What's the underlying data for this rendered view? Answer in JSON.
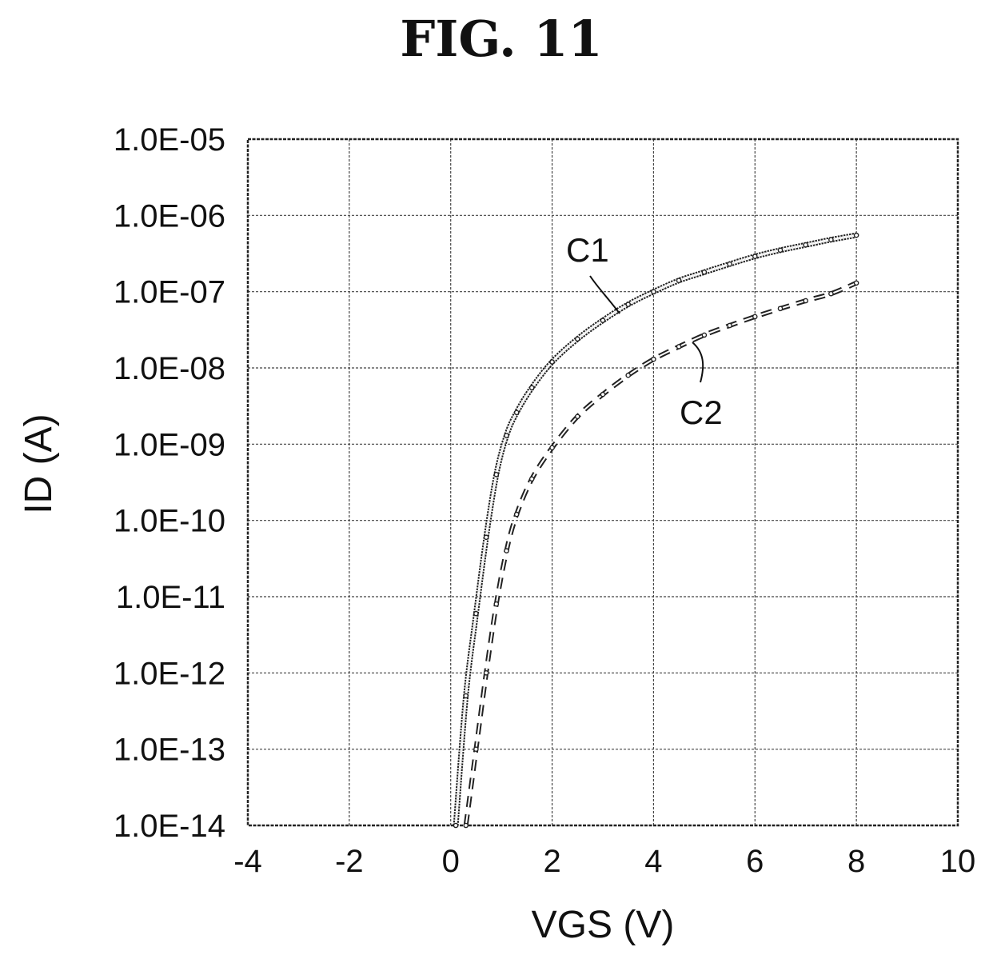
{
  "figure": {
    "title": "FIG. 11"
  },
  "chart_data": {
    "type": "line",
    "xlabel": "VGS (V)",
    "ylabel": "ID (A)",
    "xlim": [
      -4,
      10
    ],
    "ylim": [
      1e-14,
      1e-05
    ],
    "yscale": "log",
    "grid": true,
    "x_ticks": [
      "-4",
      "-2",
      "0",
      "2",
      "4",
      "6",
      "8",
      "10"
    ],
    "y_ticks": [
      "1.0E-05",
      "1.0E-06",
      "1.0E-07",
      "1.0E-08",
      "1.0E-09",
      "1.0E-10",
      "1.0E-11",
      "1.0E-12",
      "1.0E-13",
      "1.0E-14"
    ],
    "series": [
      {
        "name": "C1",
        "style": "dense-markers",
        "x": [
          0.1,
          0.3,
          0.5,
          0.7,
          0.9,
          1.1,
          1.3,
          1.6,
          2.0,
          2.5,
          3.0,
          3.5,
          4.0,
          4.5,
          5.0,
          5.5,
          6.0,
          6.5,
          7.0,
          7.5,
          8.0
        ],
        "y": [
          1e-14,
          5e-13,
          6e-12,
          6e-11,
          4e-10,
          1.3e-09,
          2.6e-09,
          5.5e-09,
          1.2e-08,
          2.4e-08,
          4.2e-08,
          6.8e-08,
          1e-07,
          1.4e-07,
          1.8e-07,
          2.3e-07,
          2.9e-07,
          3.5e-07,
          4.1e-07,
          4.8e-07,
          5.5e-07
        ]
      },
      {
        "name": "C2",
        "style": "dashed-markers",
        "x": [
          0.3,
          0.5,
          0.7,
          0.9,
          1.1,
          1.3,
          1.6,
          2.0,
          2.5,
          3.0,
          3.5,
          4.0,
          4.5,
          5.0,
          5.5,
          6.0,
          6.5,
          7.0,
          7.5,
          8.0
        ],
        "y": [
          1e-14,
          1e-13,
          1e-12,
          8e-12,
          4e-11,
          1.2e-10,
          3.5e-10,
          9e-10,
          2.3e-09,
          4.5e-09,
          8e-09,
          1.3e-08,
          1.9e-08,
          2.7e-08,
          3.6e-08,
          4.7e-08,
          6e-08,
          7.6e-08,
          9.4e-08,
          1.3e-07
        ]
      }
    ],
    "annotations": [
      {
        "text": "C1",
        "series": "C1"
      },
      {
        "text": "C2",
        "series": "C2"
      }
    ]
  }
}
